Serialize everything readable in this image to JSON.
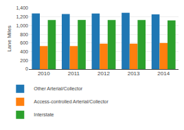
{
  "chart_data": {
    "type": "bar",
    "categories": [
      "2010",
      "2011",
      "2012",
      "2013",
      "2014"
    ],
    "series": [
      {
        "name": "Other Arterial/Collector",
        "values": [
          1280,
          1265,
          1280,
          1295,
          1260
        ]
      },
      {
        "name": "Access-controlled Arterial/Collector",
        "values": [
          530,
          530,
          585,
          585,
          600
        ]
      },
      {
        "name": "Interstate",
        "values": [
          1130,
          1130,
          1130,
          1130,
          1120
        ]
      }
    ],
    "ylabel": "Lane Miles",
    "ylim": [
      0,
      1400
    ],
    "yticks": [
      0,
      200,
      400,
      600,
      800,
      {
        "value": 1000,
        "label": "1,000"
      },
      {
        "value": 1200,
        "label": "1,200"
      },
      {
        "value": 1400,
        "label": "1,400"
      }
    ],
    "grid": true,
    "legend": "bottom"
  }
}
